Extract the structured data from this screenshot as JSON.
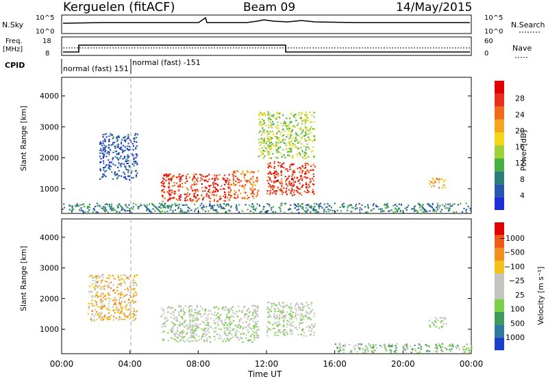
{
  "header": {
    "station": "Kerguelen (fitACF)",
    "beam": "Beam 09",
    "date": "14/May/2015"
  },
  "panel_labels": {
    "nsky": "N.Sky",
    "nsky_top": "10^5",
    "nsky_bottom": "10^0",
    "nsearch": "N.Search",
    "nsearch_top": "10^5",
    "nsearch_bottom": "10^0",
    "freq_label_1": "Freq.",
    "freq_label_2": "[MHz]",
    "freq_top": "18",
    "freq_bottom": "8",
    "nave": "Nave",
    "nave_top": "60",
    "nave_bottom": "0",
    "cpid": "CPID",
    "cpid_text_1": "normal (fast) 151",
    "cpid_text_2": "normal (fast) -151"
  },
  "chart_data": [
    {
      "type": "heatmap",
      "panel": "power",
      "ylabel": "Slant Range [km]",
      "xlabel": "Time UT",
      "x_ticks": [
        "00:00",
        "04:00",
        "08:00",
        "12:00",
        "16:00",
        "20:00",
        "00:00"
      ],
      "y_ticks": [
        "1000",
        "2000",
        "3000",
        "4000"
      ],
      "ylim": [
        200,
        4600
      ],
      "colorbar": {
        "label": "Power [dB]",
        "ticks": [
          "4",
          "8",
          "12",
          "16",
          "20",
          "24",
          "28"
        ],
        "colors": [
          "#1c2fd6",
          "#2a56b0",
          "#2c7f78",
          "#46b040",
          "#9fd13a",
          "#f4d51a",
          "#f4a51a",
          "#f26b1a",
          "#e8301a",
          "#e00000"
        ]
      },
      "echo_regions": [
        {
          "t0": 2.2,
          "t1": 4.4,
          "r0": 1300,
          "r1": 2800,
          "level": 1
        },
        {
          "t0": 5.8,
          "t1": 9.8,
          "r0": 600,
          "r1": 1500,
          "level": 8
        },
        {
          "t0": 9.8,
          "t1": 11.5,
          "r0": 700,
          "r1": 1600,
          "level": 7
        },
        {
          "t0": 12.0,
          "t1": 14.8,
          "r0": 800,
          "r1": 1900,
          "level": 8
        },
        {
          "t0": 11.5,
          "t1": 14.8,
          "r0": 2000,
          "r1": 3500,
          "level": 4
        },
        {
          "t0": 21.5,
          "t1": 22.5,
          "r0": 1050,
          "r1": 1400,
          "level": 6
        },
        {
          "t0": 0.0,
          "t1": 24.0,
          "r0": 250,
          "r1": 550,
          "level": 2
        }
      ]
    },
    {
      "type": "heatmap",
      "panel": "velocity",
      "ylabel": "Slant Range [km]",
      "xlabel": "Time UT",
      "x_ticks": [
        "00:00",
        "04:00",
        "08:00",
        "12:00",
        "16:00",
        "20:00",
        "00:00"
      ],
      "y_ticks": [
        "1000",
        "2000",
        "3000",
        "4000"
      ],
      "ylim": [
        200,
        4600
      ],
      "colorbar": {
        "label": "Velocity [m s⁻¹]",
        "ticks": [
          "1000",
          "500",
          "100",
          "25",
          "−25",
          "−100",
          "−500",
          "−1000"
        ],
        "colors": [
          "#1c3fc9",
          "#2f7a9e",
          "#3f9b5b",
          "#7bd04a",
          "#c4c4c0",
          "#c4c4c0",
          "#f2c21a",
          "#f28f1a",
          "#ef5a1a",
          "#e00000"
        ]
      },
      "echo_regions": [
        {
          "t0": 1.5,
          "t1": 4.4,
          "r0": 1300,
          "r1": 2800,
          "level": 6
        },
        {
          "t0": 5.8,
          "t1": 11.5,
          "r0": 600,
          "r1": 1800,
          "level": 4
        },
        {
          "t0": 12.0,
          "t1": 14.8,
          "r0": 800,
          "r1": 1900,
          "level": 4
        },
        {
          "t0": 21.5,
          "t1": 22.5,
          "r0": 1050,
          "r1": 1400,
          "level": 4
        },
        {
          "t0": 16.0,
          "t1": 24.0,
          "r0": 250,
          "r1": 550,
          "level": 3
        }
      ]
    }
  ]
}
